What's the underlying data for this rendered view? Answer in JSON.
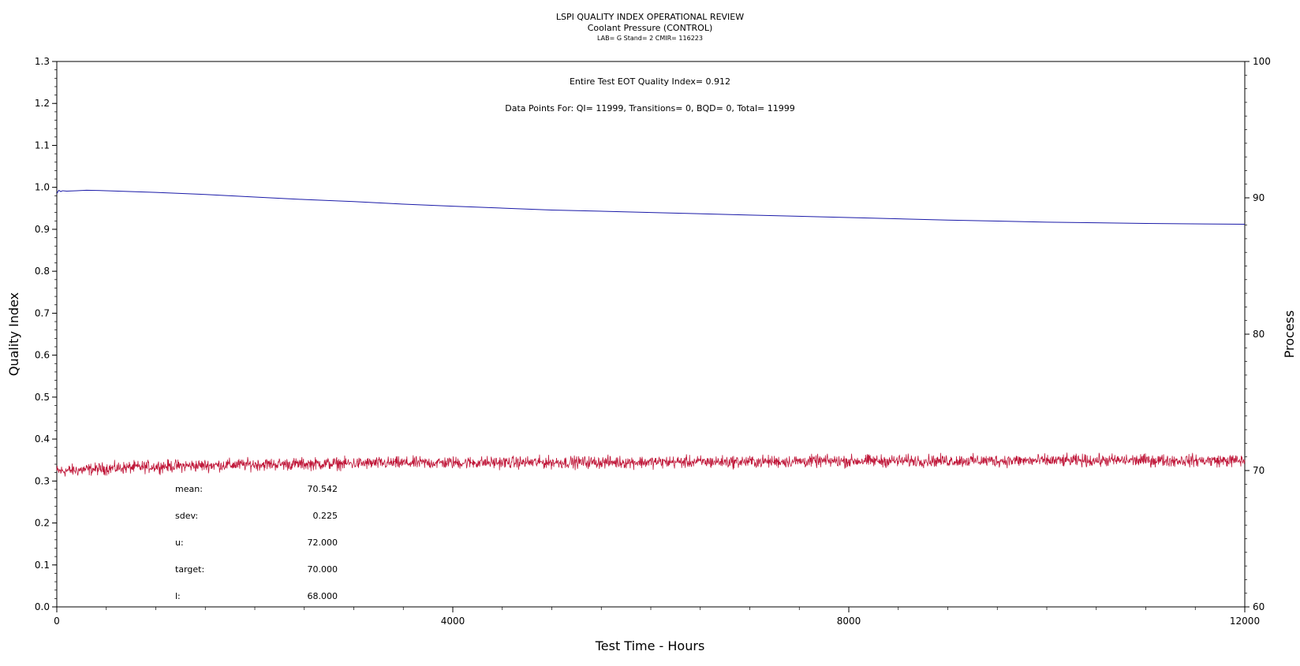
{
  "chart_data": {
    "type": "line",
    "title": "LSPI QUALITY INDEX OPERATIONAL REVIEW",
    "subtitle": "Coolant Pressure (CONTROL)",
    "subtitle2": "LAB= G Stand= 2 CMIR= 116223",
    "xlabel": "Test Time - Hours",
    "ylabel_left": "Quality Index",
    "ylabel_right": "Process",
    "xlim": [
      0,
      12000
    ],
    "ylim_left": [
      0.0,
      1.3
    ],
    "ylim_right": [
      60,
      100
    ],
    "x_ticks": [
      "0",
      "4000",
      "8000",
      "12000"
    ],
    "y_left_ticks": [
      "0.0",
      "0.1",
      "0.2",
      "0.3",
      "0.4",
      "0.5",
      "0.6",
      "0.7",
      "0.8",
      "0.9",
      "1.0",
      "1.1",
      "1.2",
      "1.3"
    ],
    "y_right_ticks": [
      "60",
      "70",
      "80",
      "90",
      "100"
    ],
    "annotation_eot": "Entire Test EOT Quality Index=   0.912",
    "annotation_points": "Data Points For: QI= 11999, Transitions=     0, BQD=     0, Total= 11999",
    "stats": [
      {
        "label": "mean:",
        "value": "70.542"
      },
      {
        "label": "sdev:",
        "value": "0.225"
      },
      {
        "label": "u:",
        "value": "72.000"
      },
      {
        "label": "target:",
        "value": "70.000"
      },
      {
        "label": "l:",
        "value": "68.000"
      }
    ],
    "series": [
      {
        "axis": "left",
        "color": "#1a1aa8",
        "x": [
          0,
          20,
          40,
          60,
          100,
          200,
          300,
          500,
          1000,
          1500,
          2000,
          2500,
          3000,
          3500,
          4000,
          5000,
          6000,
          7000,
          8000,
          9000,
          10000,
          11000,
          12000
        ],
        "values": [
          0.985,
          0.993,
          0.99,
          0.992,
          0.991,
          0.992,
          0.993,
          0.992,
          0.988,
          0.983,
          0.977,
          0.971,
          0.966,
          0.96,
          0.955,
          0.946,
          0.94,
          0.934,
          0.928,
          0.922,
          0.917,
          0.914,
          0.912
        ]
      },
      {
        "axis": "right",
        "color": "#c0183a",
        "x": [
          0,
          500,
          1000,
          2000,
          3000,
          4000,
          5000,
          6000,
          7000,
          8000,
          9000,
          10000,
          11000,
          12000
        ],
        "values": [
          69.95,
          70.15,
          70.3,
          70.45,
          70.52,
          70.58,
          70.6,
          70.62,
          70.65,
          70.7,
          70.72,
          70.72,
          70.75,
          70.72
        ],
        "noise_sdev": 0.225
      }
    ]
  }
}
